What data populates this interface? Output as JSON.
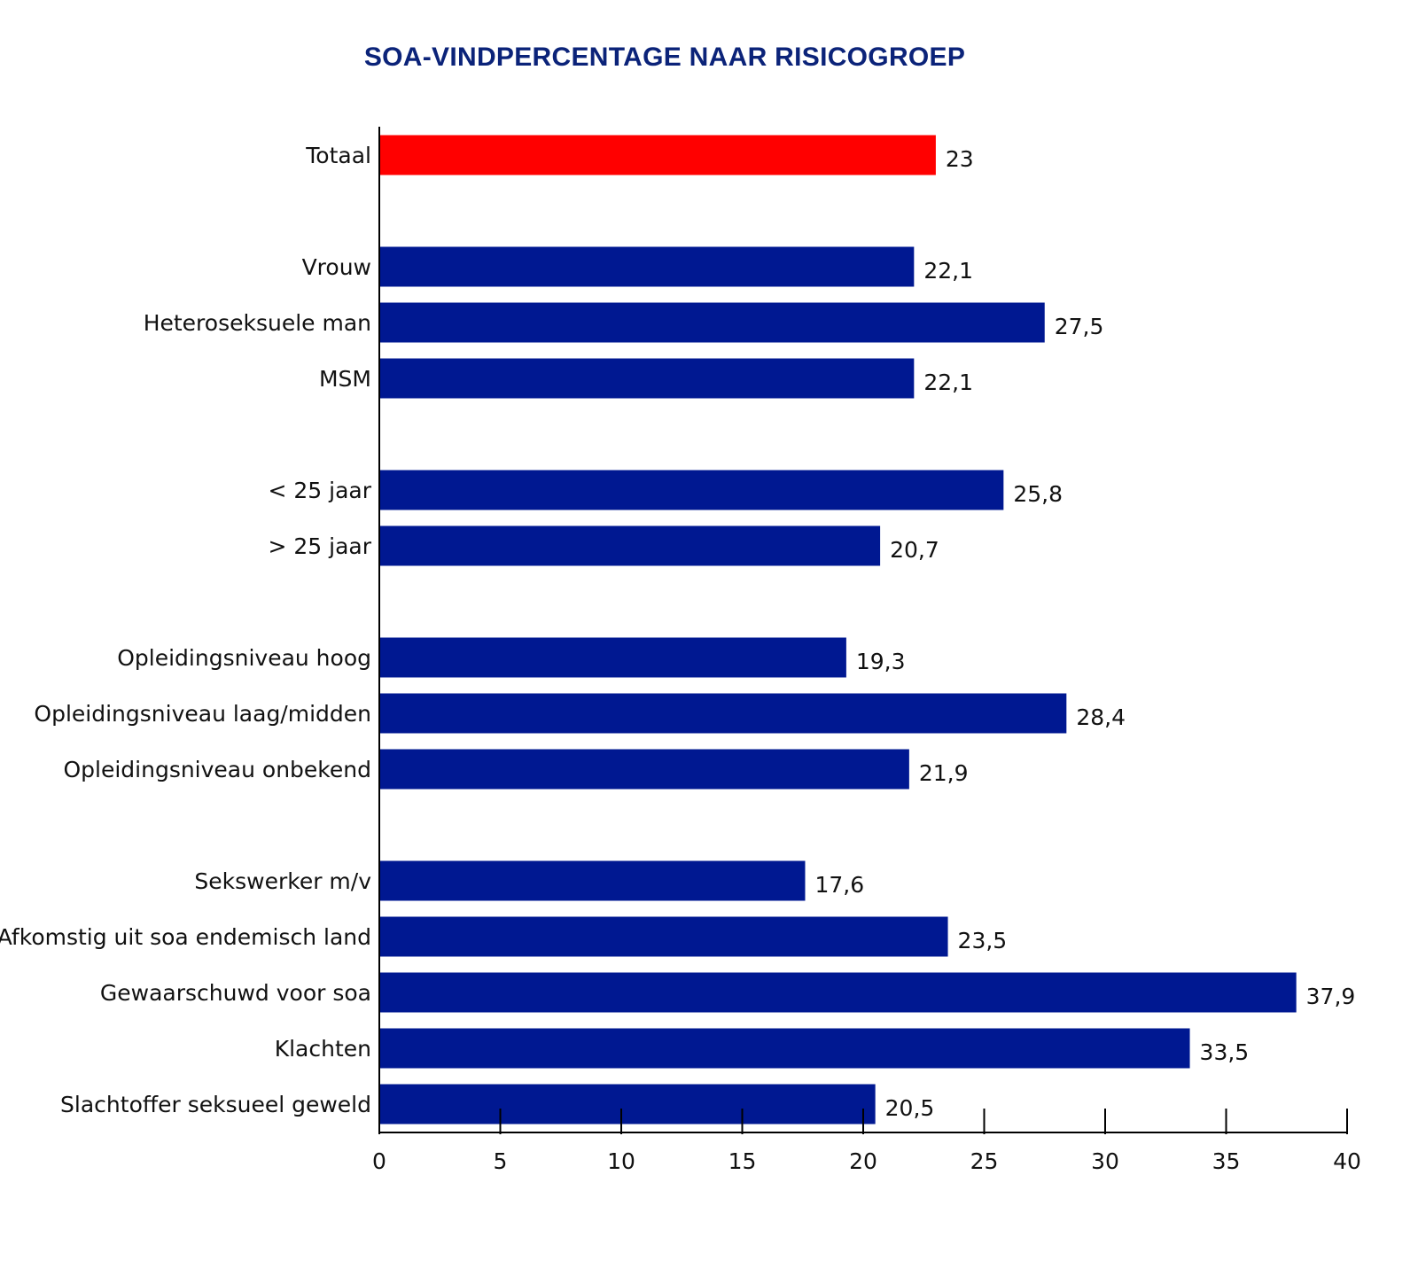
{
  "chart_data": {
    "type": "bar",
    "orientation": "horizontal",
    "title": "SOA-VINDPERCENTAGE NAAR RISICOGROEP",
    "xlim": [
      0,
      40
    ],
    "xticks": [
      0,
      5,
      10,
      15,
      20,
      25,
      30,
      35,
      40
    ],
    "grid": false,
    "categories": [
      "Totaal",
      "Vrouw",
      "Heteroseksuele man",
      "MSM",
      "< 25 jaar",
      "> 25 jaar",
      "Opleidingsniveau hoog",
      "Opleidingsniveau laag/midden",
      "Opleidingsniveau onbekend",
      "Sekswerker m/v",
      "Afkomstig uit soa endemisch land",
      "Gewaarschuwd voor soa",
      "Klachten",
      "Slachtoffer seksueel geweld"
    ],
    "values": [
      23,
      22.1,
      27.5,
      22.1,
      25.8,
      20.7,
      19.3,
      28.4,
      21.9,
      17.6,
      23.5,
      37.9,
      33.5,
      20.5
    ],
    "value_labels": [
      "23",
      "22,1",
      "27,5",
      "22,1",
      "25,8",
      "20,7",
      "19,3",
      "28,4",
      "21,9",
      "17,6",
      "23,5",
      "37,9",
      "33,5",
      "20,5"
    ],
    "groups": [
      [
        0
      ],
      [
        1,
        2,
        3
      ],
      [
        4,
        5
      ],
      [
        6,
        7,
        8
      ],
      [
        9,
        10,
        11,
        12,
        13
      ]
    ],
    "colors": {
      "highlight": "#ff0000",
      "bar": "#001891",
      "title": "#0b2379",
      "axis": "#000000"
    },
    "highlight_index": 0
  }
}
